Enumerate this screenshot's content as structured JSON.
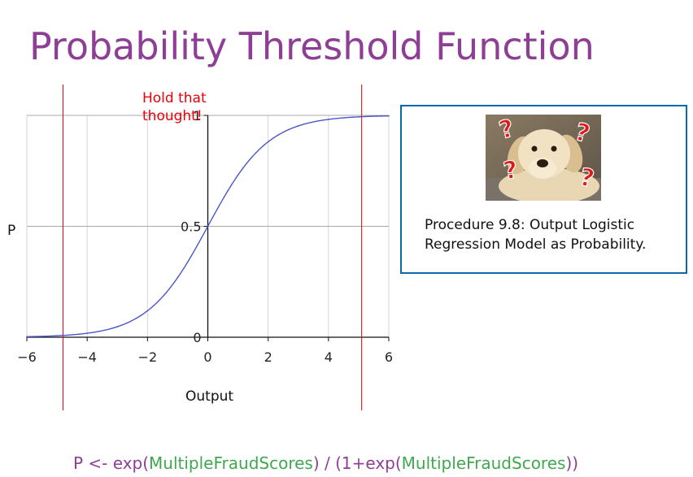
{
  "slide": {
    "title": "Probability Threshold Function"
  },
  "chart_data": {
    "type": "line",
    "function": "logistic",
    "xlabel": "Output",
    "ylabel": "P",
    "xlim": [
      -6,
      6
    ],
    "ylim": [
      0,
      1
    ],
    "x_ticks": [
      -6,
      -4,
      -2,
      0,
      2,
      4,
      6
    ],
    "x_tick_labels": [
      "−6",
      "−4",
      "−2",
      "0",
      "2",
      "4",
      "6"
    ],
    "y_ticks": [
      0,
      0.5,
      1
    ],
    "y_tick_labels": [
      "0",
      "0.5",
      "1"
    ],
    "grid": true,
    "series": [
      {
        "x": [
          -6,
          -5,
          -4,
          -3,
          -2,
          -1,
          0,
          1,
          2,
          3,
          4,
          5,
          6
        ],
        "y": [
          0.0025,
          0.0067,
          0.018,
          0.047,
          0.119,
          0.269,
          0.5,
          0.731,
          0.881,
          0.953,
          0.982,
          0.993,
          0.9975
        ],
        "color": "#4a56c8"
      }
    ],
    "threshold_lines_x": [
      -4.8,
      5.1
    ],
    "threshold_color": "#e8000b",
    "annotation": "Hold that thought!"
  },
  "callout": {
    "image": "confused-dog-with-question-marks",
    "caption": "Procedure 9.8: Output Logistic Regression Model as Probability."
  },
  "formula": {
    "parts": [
      {
        "text": "P <- exp(",
        "color": "#8e3f95"
      },
      {
        "text": "MultipleFraudScores",
        "color": "#3fa84f"
      },
      {
        "text": ") / (1+exp(",
        "color": "#8e3f95"
      },
      {
        "text": "MultipleFraudScores",
        "color": "#3fa84f"
      },
      {
        "text": "))",
        "color": "#8e3f95"
      }
    ]
  }
}
